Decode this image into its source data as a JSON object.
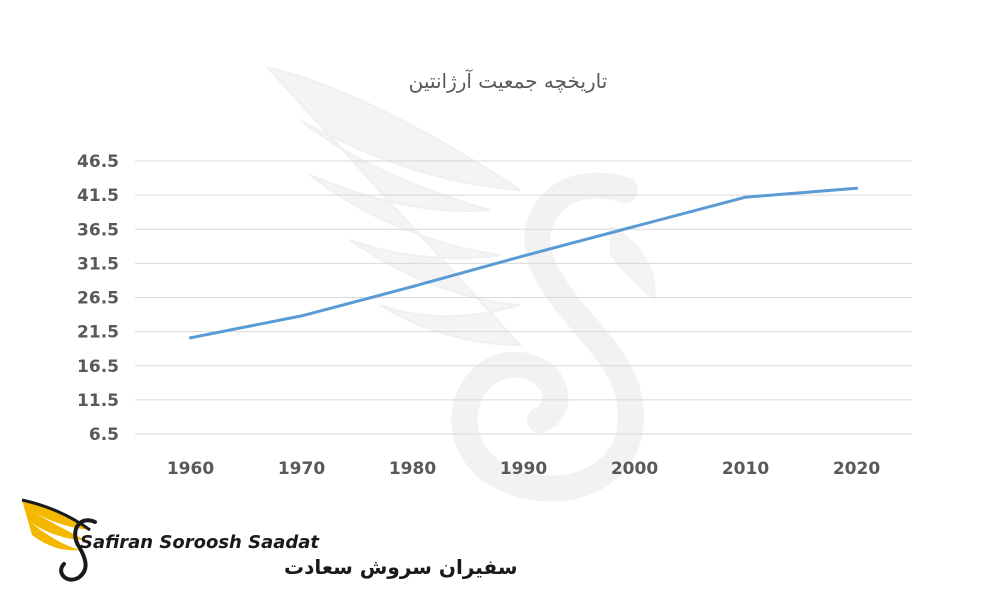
{
  "chart_data": {
    "type": "line",
    "title": "تاریخچه جمعیت آرژانتین",
    "xlabel": "",
    "ylabel": "",
    "x": [
      1960,
      1970,
      1980,
      1990,
      2000,
      2010,
      2020
    ],
    "x_tick_labels": [
      "1960",
      "1970",
      "1980",
      "1990",
      "2000",
      "2010",
      "2020"
    ],
    "y_ticks": [
      6.5,
      11.5,
      16.5,
      21.5,
      26.5,
      31.5,
      36.5,
      41.5,
      46.5
    ],
    "y_tick_labels": [
      "6.5",
      "11.5",
      "16.5",
      "21.5",
      "26.5",
      "31.5",
      "36.5",
      "41.5",
      "46.5"
    ],
    "ylim": [
      6.5,
      46.5
    ],
    "grid": true,
    "series": [
      {
        "values": [
          20.6,
          23.8,
          28.1,
          32.6,
          36.9,
          41.2,
          42.5
        ],
        "color": "#5b9bd5"
      }
    ]
  },
  "logo": {
    "name_en": "Safiran Soroosh Saadat",
    "name_fa": "سفیران سروش سعادت",
    "accent_color": "#f5b800",
    "icon": "bird-wing-logo-icon"
  },
  "watermark": {
    "icon": "bird-watermark-icon"
  }
}
